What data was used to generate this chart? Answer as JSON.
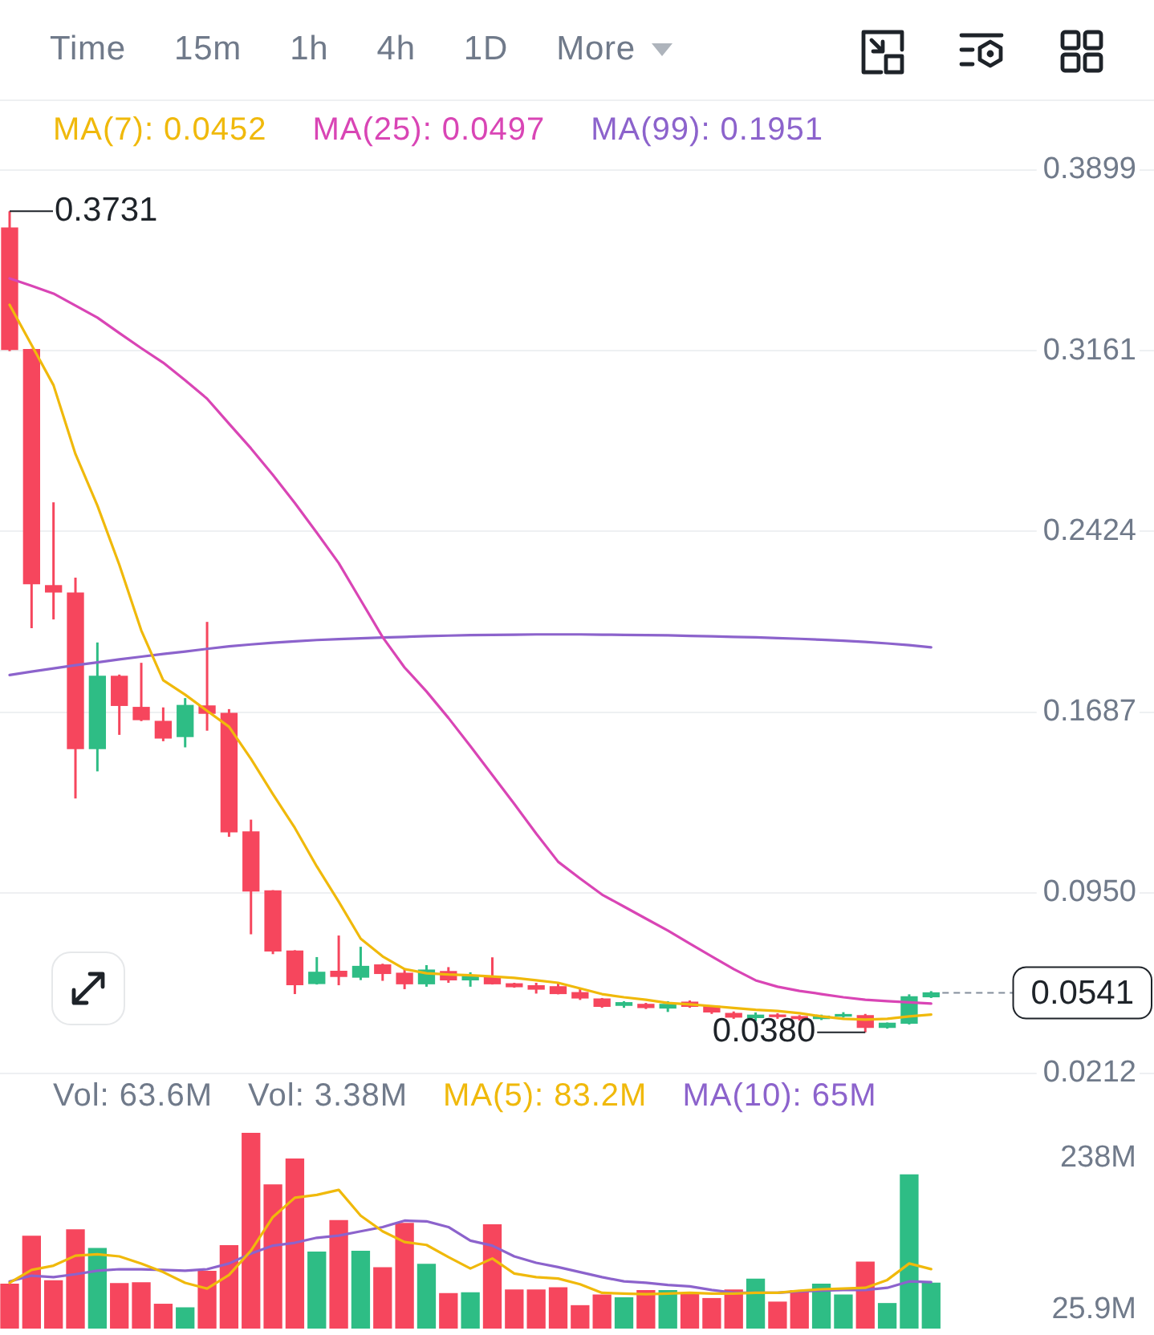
{
  "chart_data": [
    {
      "type": "other",
      "annotations": [
        "Time",
        "15m",
        "1h",
        "4h",
        "1D",
        "More"
      ]
    },
    {
      "type": "candlestick",
      "categories": [
        null,
        null,
        null,
        null,
        null,
        null,
        null,
        null,
        null,
        null,
        null,
        null,
        null,
        null,
        null,
        null,
        null,
        null,
        null,
        null,
        null,
        null,
        null,
        null,
        null,
        null,
        null,
        null,
        null,
        null,
        null,
        null,
        null,
        null,
        null,
        null,
        null,
        null,
        null,
        null,
        null,
        null,
        null
      ],
      "ohlc": [
        [
          0.3663,
          0.3731,
          0.316,
          0.3167
        ],
        [
          0.3167,
          0.317,
          0.2029,
          0.2211
        ],
        [
          0.2203,
          0.2543,
          0.2065,
          0.2177
        ],
        [
          0.2173,
          0.2236,
          0.1334,
          0.1538
        ],
        [
          0.1538,
          0.1971,
          0.1445,
          0.1833
        ],
        [
          0.1833,
          0.184,
          0.1594,
          0.1714
        ],
        [
          0.1706,
          0.1888,
          0.165,
          0.1656
        ],
        [
          0.1649,
          0.1706,
          0.1568,
          0.1581
        ],
        [
          0.1587,
          0.1744,
          0.1543,
          0.1714
        ],
        [
          0.1712,
          0.2055,
          0.1611,
          0.1682
        ],
        [
          0.1682,
          0.1699,
          0.1178,
          0.1198
        ],
        [
          0.1198,
          0.1248,
          0.078,
          0.0957
        ],
        [
          0.0957,
          0.096,
          0.0699,
          0.0712
        ],
        [
          0.0712,
          0.0715,
          0.0536,
          0.0574
        ],
        [
          0.0579,
          0.0687,
          0.0575,
          0.0625
        ],
        [
          0.0629,
          0.0775,
          0.0572,
          0.0608
        ],
        [
          0.0605,
          0.0729,
          0.0593,
          0.0649
        ],
        [
          0.0655,
          0.066,
          0.059,
          0.062
        ],
        [
          0.0621,
          0.064,
          0.0556,
          0.0578
        ],
        [
          0.0578,
          0.0654,
          0.0566,
          0.0634
        ],
        [
          0.0628,
          0.0646,
          0.0582,
          0.0594
        ],
        [
          0.0594,
          0.0625,
          0.0566,
          0.061
        ],
        [
          0.0604,
          0.0686,
          0.0575,
          0.0578
        ],
        [
          0.0578,
          0.0582,
          0.0562,
          0.0566
        ],
        [
          0.057,
          0.0582,
          0.0538,
          0.0556
        ],
        [
          0.0566,
          0.058,
          0.0535,
          0.0538
        ],
        [
          0.0542,
          0.0556,
          0.0512,
          0.052
        ],
        [
          0.0516,
          0.052,
          0.048,
          0.0486
        ],
        [
          0.049,
          0.0507,
          0.048,
          0.0501
        ],
        [
          0.0494,
          0.05,
          0.0475,
          0.0481
        ],
        [
          0.0479,
          0.0507,
          0.0463,
          0.0494
        ],
        [
          0.0503,
          0.051,
          0.048,
          0.0486
        ],
        [
          0.0486,
          0.049,
          0.0455,
          0.0463
        ],
        [
          0.0457,
          0.0465,
          0.0435,
          0.0442
        ],
        [
          0.044,
          0.0461,
          0.0425,
          0.045
        ],
        [
          0.045,
          0.0458,
          0.0435,
          0.0444
        ],
        [
          0.0444,
          0.045,
          0.0428,
          0.0436
        ],
        [
          0.0436,
          0.0452,
          0.043,
          0.0446
        ],
        [
          0.0446,
          0.0462,
          0.044,
          0.0452
        ],
        [
          0.0448,
          0.0455,
          0.038,
          0.04
        ],
        [
          0.04,
          0.042,
          0.0395,
          0.0417
        ],
        [
          0.0417,
          0.0535,
          0.0412,
          0.0525
        ],
        [
          0.0525,
          0.0548,
          0.052,
          0.0541
        ]
      ],
      "colors": [
        "#f6465d",
        "#f6465d",
        "#f6465d",
        "#f6465d",
        "#2ebd85",
        "#f6465d",
        "#f6465d",
        "#f6465d",
        "#2ebd85",
        "#f6465d",
        "#f6465d",
        "#f6465d",
        "#f6465d",
        "#f6465d",
        "#2ebd85",
        "#f6465d",
        "#2ebd85",
        "#f6465d",
        "#f6465d",
        "#2ebd85",
        "#f6465d",
        "#2ebd85",
        "#f6465d",
        "#f6465d",
        "#f6465d",
        "#f6465d",
        "#f6465d",
        "#f6465d",
        "#2ebd85",
        "#f6465d",
        "#2ebd85",
        "#f6465d",
        "#f6465d",
        "#f6465d",
        "#2ebd85",
        "#f6465d",
        "#f6465d",
        "#2ebd85",
        "#2ebd85",
        "#f6465d",
        "#2ebd85",
        "#2ebd85",
        "#2ebd85"
      ],
      "series": [
        {
          "name": "MA(7): 0.0452",
          "type": "line",
          "color": "#f0b90b",
          "values": [
            0.3349,
            0.3185,
            0.3021,
            0.274,
            0.253,
            0.2288,
            0.202,
            0.1817,
            0.1758,
            0.1692,
            0.1627,
            0.1496,
            0.1352,
            0.1214,
            0.1057,
            0.0913,
            0.0762,
            0.069,
            0.0638,
            0.0621,
            0.0616,
            0.0613,
            0.0608,
            0.0602,
            0.0592,
            0.0582,
            0.0559,
            0.0536,
            0.0523,
            0.0513,
            0.05,
            0.0494,
            0.0487,
            0.0479,
            0.0472,
            0.0467,
            0.0458,
            0.0445,
            0.0435,
            0.0432,
            0.0435,
            0.0445,
            0.0452
          ]
        },
        {
          "name": "MA(25): 0.0497",
          "type": "line",
          "color": "#d945b5",
          "values": [
            0.3457,
            0.3427,
            0.3395,
            0.3346,
            0.3297,
            0.3234,
            0.3172,
            0.3113,
            0.3041,
            0.2966,
            0.2864,
            0.2763,
            0.2655,
            0.254,
            0.2419,
            0.2295,
            0.2144,
            0.1993,
            0.1869,
            0.1771,
            0.1663,
            0.1548,
            0.143,
            0.1312,
            0.1191,
            0.1076,
            0.1008,
            0.0942,
            0.0893,
            0.0844,
            0.0795,
            0.0742,
            0.069,
            0.0638,
            0.0592,
            0.0566,
            0.0549,
            0.0536,
            0.0523,
            0.0513,
            0.0507,
            0.0502,
            0.0497
          ]
        },
        {
          "name": "MA(99): 0.1951",
          "type": "line",
          "color": "#8c63cc",
          "values": [
            0.1838,
            0.1852,
            0.1865,
            0.1878,
            0.189,
            0.1902,
            0.1913,
            0.1924,
            0.1934,
            0.1945,
            0.1955,
            0.1963,
            0.197,
            0.1976,
            0.1981,
            0.1985,
            0.1988,
            0.1991,
            0.1994,
            0.1997,
            0.1999,
            0.2001,
            0.2002,
            0.2003,
            0.2004,
            0.2004,
            0.2004,
            0.2003,
            0.2002,
            0.2001,
            0.2,
            0.1998,
            0.1996,
            0.1994,
            0.1992,
            0.1989,
            0.1986,
            0.1982,
            0.1978,
            0.1973,
            0.1967,
            0.196,
            0.1951
          ]
        }
      ],
      "ylim": [
        0.0212,
        0.3899
      ],
      "yticks": [
        0.0212,
        {
          "value": 0.095,
          "label": "0.0950"
        },
        0.1687,
        0.2424,
        0.3161,
        0.3899
      ],
      "grid": "y",
      "legend": "top",
      "tick_labels": "y",
      "annotations": [
        "0.3731",
        "0.0380"
      ],
      "ref_lines": [
        {
          "axis": "y",
          "value": 0.0541,
          "label": "0.0541",
          "line_style": "dashed"
        }
      ]
    },
    {
      "type": "bar",
      "categories": [
        null,
        null,
        null,
        null,
        null,
        null,
        null,
        null,
        null,
        null,
        null,
        null,
        null,
        null,
        null,
        null,
        null,
        null,
        null,
        null,
        null,
        null,
        null,
        null,
        null,
        null,
        null,
        null,
        null,
        null,
        null,
        null,
        null,
        null,
        null,
        null,
        null,
        null,
        null,
        null,
        null,
        null,
        null
      ],
      "series": [
        {
          "name": "Vol: 63.6M",
          "type": "bar",
          "colors": [
            "#f6465d",
            "#f6465d",
            "#f6465d",
            "#f6465d",
            "#2ebd85",
            "#f6465d",
            "#f6465d",
            "#f6465d",
            "#2ebd85",
            "#f6465d",
            "#f6465d",
            "#f6465d",
            "#f6465d",
            "#f6465d",
            "#2ebd85",
            "#f6465d",
            "#2ebd85",
            "#f6465d",
            "#f6465d",
            "#2ebd85",
            "#f6465d",
            "#2ebd85",
            "#f6465d",
            "#f6465d",
            "#f6465d",
            "#f6465d",
            "#f6465d",
            "#f6465d",
            "#2ebd85",
            "#f6465d",
            "#2ebd85",
            "#f6465d",
            "#f6465d",
            "#f6465d",
            "#2ebd85",
            "#f6465d",
            "#f6465d",
            "#2ebd85",
            "#2ebd85",
            "#f6465d",
            "#2ebd85",
            "#2ebd85",
            "#2ebd85"
          ],
          "values": [
            62,
            129,
            67,
            138,
            112,
            63,
            64,
            34,
            29,
            80,
            116,
            273,
            201,
            237,
            107,
            151,
            108,
            85,
            147,
            90,
            49,
            50,
            145,
            54,
            54,
            57,
            32,
            47,
            43,
            53,
            53,
            49,
            42,
            54,
            69,
            37,
            53,
            62,
            47,
            93,
            35,
            215,
            63.6
          ]
        },
        {
          "name": "MA(5): 83.2M",
          "type": "line",
          "color": "#f0b90b",
          "values": [
            64,
            82,
            88,
            102,
            104,
            101,
            91,
            79,
            64,
            56,
            75,
            109,
            156,
            183,
            187,
            194,
            158,
            136,
            121,
            117,
            100,
            84,
            98,
            77,
            72,
            70,
            62,
            50,
            49,
            48,
            49,
            50,
            49,
            49,
            50,
            50,
            53,
            55,
            56,
            57,
            68,
            91,
            83.2
          ]
        },
        {
          "name": "MA(10): 65M",
          "type": "line",
          "color": "#8c63cc",
          "values": [
            66,
            74,
            72,
            76,
            81,
            83,
            83,
            82,
            81,
            83,
            91,
            105,
            116,
            120,
            127,
            130,
            136,
            142,
            151,
            150,
            142,
            123,
            116,
            101,
            92,
            86,
            79,
            72,
            66,
            64,
            61,
            59,
            54,
            50,
            50,
            50,
            52,
            53,
            54,
            54,
            57,
            66,
            65
          ]
        }
      ],
      "ylim": [
        0,
        285
      ],
      "yticks": [
        {
          "value": 25.9,
          "label": "25.9M"
        },
        {
          "value": 238,
          "label": "238M"
        }
      ],
      "legend": "top left",
      "tick_labels": "y",
      "annotations": [
        "Vol: 3.38M"
      ]
    }
  ]
}
